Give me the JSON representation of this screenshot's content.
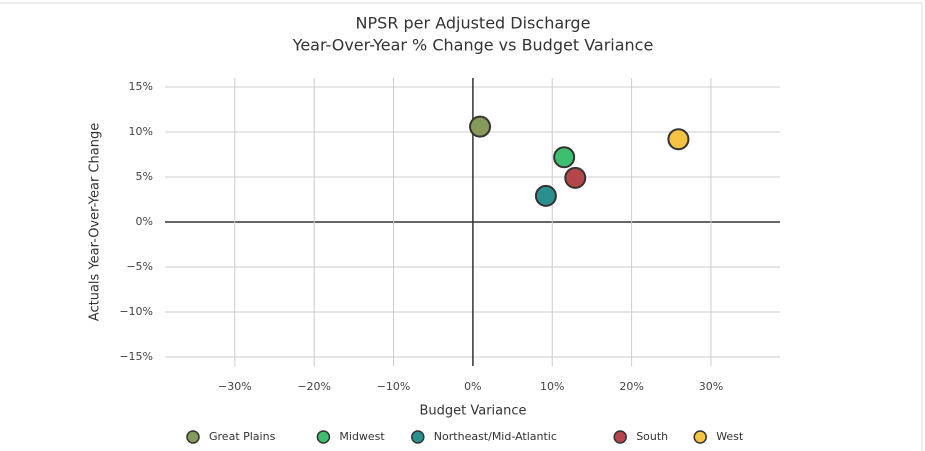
{
  "chart_data": {
    "type": "scatter",
    "title": "NPSR per Adjusted Discharge",
    "subtitle": "Year-Over-Year % Change vs Budget Variance",
    "x_label": "Budget Variance",
    "y_label": "Actuals Year-Over-Year Change",
    "xlim": [
      -38.8,
      38.7
    ],
    "ylim": [
      -16,
      16
    ],
    "xticks": [
      {
        "value": -30,
        "label": "−30%"
      },
      {
        "value": -20,
        "label": "−20%"
      },
      {
        "value": -10,
        "label": "−10%"
      },
      {
        "value": 0,
        "label": "0%"
      },
      {
        "value": 10,
        "label": "10%"
      },
      {
        "value": 20,
        "label": "20%"
      },
      {
        "value": 30,
        "label": "30%"
      }
    ],
    "yticks": [
      {
        "value": 15,
        "label": "15%"
      },
      {
        "value": 10,
        "label": "10%"
      },
      {
        "value": 5,
        "label": "5%"
      },
      {
        "value": 0,
        "label": "0%"
      },
      {
        "value": -5,
        "label": "−5%"
      },
      {
        "value": -10,
        "label": "−10%"
      },
      {
        "value": -15,
        "label": "−15%"
      }
    ],
    "grid": true,
    "legend": "bottom",
    "series": [
      {
        "name": "Great Plains",
        "color": "#869a5c",
        "x": [
          0.9
        ],
        "values": [
          10.6
        ]
      },
      {
        "name": "Midwest",
        "color": "#3cc070",
        "x": [
          11.5
        ],
        "values": [
          7.2
        ]
      },
      {
        "name": "Northeast/Mid-Atlantic",
        "color": "#2a8f8f",
        "x": [
          9.2
        ],
        "values": [
          2.9
        ]
      },
      {
        "name": "South",
        "color": "#b5474b",
        "x": [
          12.9
        ],
        "values": [
          4.9
        ]
      },
      {
        "name": "West",
        "color": "#f5c242",
        "x": [
          25.9
        ],
        "values": [
          9.2
        ]
      }
    ]
  }
}
